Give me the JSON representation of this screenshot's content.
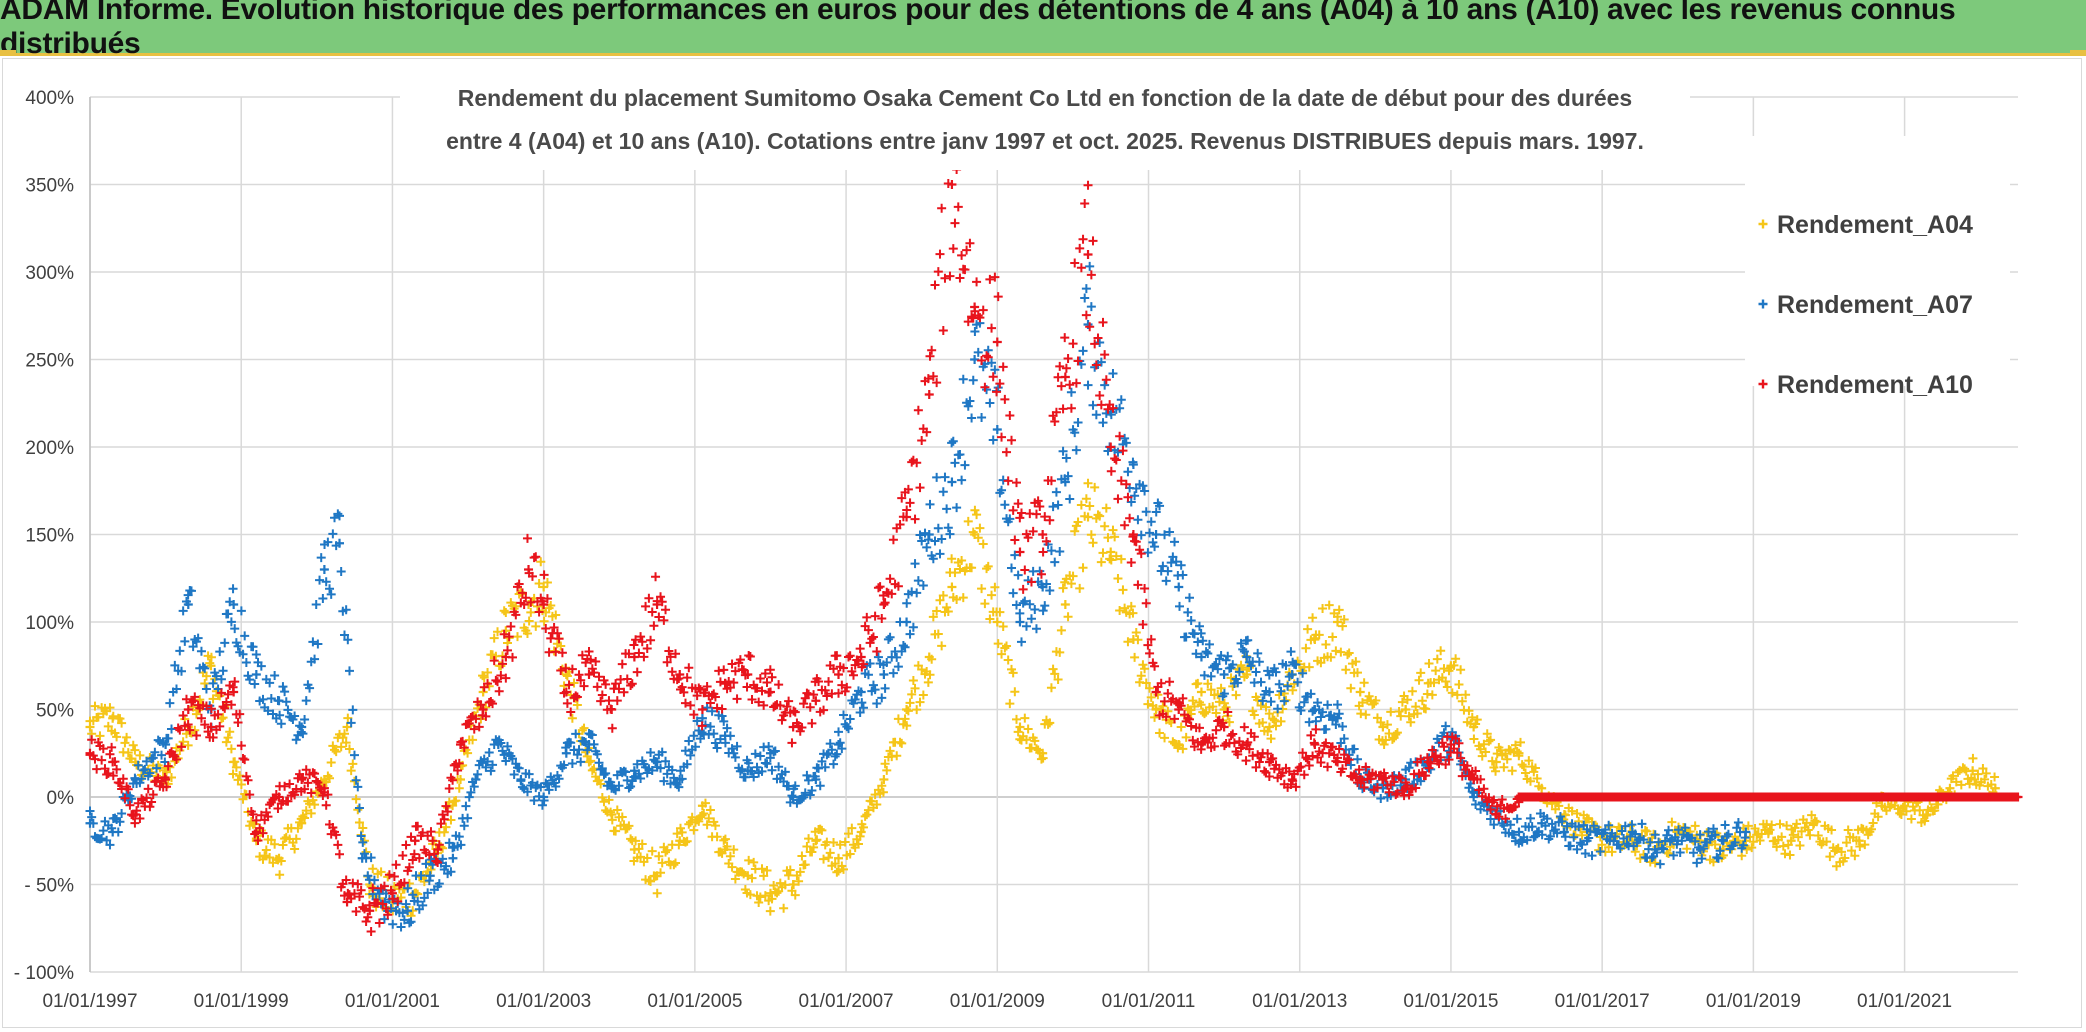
{
  "header": {
    "title": "ADAM Informe. Evolution historique des performances en euros pour des détentions de 4 ans (A04) à 10 ans (A10) avec les revenus connus distribués"
  },
  "colors": {
    "banner": "#7dc97b",
    "A04": "#f5c518",
    "A07": "#1f77c4",
    "A10": "#e8141c",
    "grid": "#d9d9d9"
  },
  "chart_data": {
    "type": "scatter",
    "title_line1": "Rendement du placement Sumitomo Osaka Cement Co Ltd en fonction de la date de début pour des durées",
    "title_line2": "entre 4 (A04) et 10 ans (A10). Cotations entre janv 1997 et oct. 2025. Revenus DISTRIBUES depuis mars. 1997.",
    "xlabel": "",
    "ylabel": "",
    "xlim": [
      1997.0,
      2022.5
    ],
    "ylim": [
      -100,
      400
    ],
    "y_ticks": [
      -100,
      -50,
      0,
      50,
      100,
      150,
      200,
      250,
      300,
      350,
      400
    ],
    "y_tick_labels": [
      "- 100%",
      "- 50%",
      "0%",
      "50%",
      "100%",
      "150%",
      "200%",
      "250%",
      "300%",
      "350%",
      "400%"
    ],
    "x_ticks": [
      1997,
      1999,
      2001,
      2003,
      2005,
      2007,
      2009,
      2011,
      2013,
      2015,
      2017,
      2019,
      2021
    ],
    "x_tick_labels": [
      "01/01/1997",
      "01/01/1999",
      "01/01/2001",
      "01/01/2003",
      "01/01/2005",
      "01/01/2007",
      "01/01/2009",
      "01/01/2011",
      "01/01/2013",
      "01/01/2015",
      "01/01/2017",
      "01/01/2019",
      "01/01/2021"
    ],
    "marker": "+",
    "legend_position": "top-right",
    "series": [
      {
        "name": "Rendement_A04",
        "color": "#f5c518",
        "x": [
          1997.0,
          1997.3,
          1997.6,
          1998.0,
          1998.3,
          1998.6,
          1998.9,
          1999.2,
          1999.5,
          1999.8,
          2000.1,
          2000.4,
          2000.7,
          2001.0,
          2001.3,
          2001.6,
          2001.9,
          2002.2,
          2002.5,
          2002.8,
          2003.0,
          2003.3,
          2003.6,
          2003.9,
          2004.2,
          2004.5,
          2004.8,
          2005.1,
          2005.4,
          2005.7,
          2006.0,
          2006.3,
          2006.6,
          2006.9,
          2007.2,
          2007.5,
          2007.8,
          2008.1,
          2008.4,
          2008.7,
          2009.0,
          2009.3,
          2009.6,
          2009.9,
          2010.2,
          2010.5,
          2010.8,
          2011.1,
          2011.4,
          2011.7,
          2012.0,
          2012.3,
          2012.6,
          2012.9,
          2013.2,
          2013.5,
          2013.8,
          2014.1,
          2014.4,
          2014.7,
          2015.0,
          2015.3,
          2015.6,
          2015.9,
          2016.2,
          2016.5,
          2016.8,
          2017.1,
          2017.4,
          2017.7,
          2018.0,
          2018.3,
          2018.6,
          2018.9,
          2019.2,
          2019.5,
          2019.8,
          2020.1,
          2020.4,
          2020.7,
          2021.0,
          2021.3,
          2021.6,
          2021.9,
          2022.2
        ],
        "values": [
          40,
          45,
          20,
          10,
          40,
          75,
          20,
          -25,
          -35,
          -15,
          10,
          40,
          -50,
          -60,
          -55,
          -30,
          10,
          60,
          95,
          110,
          120,
          70,
          20,
          -10,
          -30,
          -45,
          -25,
          -5,
          -30,
          -45,
          -55,
          -50,
          -25,
          -35,
          -20,
          10,
          50,
          80,
          120,
          150,
          100,
          40,
          25,
          110,
          160,
          140,
          90,
          50,
          30,
          60,
          50,
          70,
          40,
          70,
          90,
          100,
          60,
          40,
          50,
          65,
          75,
          40,
          20,
          25,
          5,
          -10,
          -20,
          -25,
          -25,
          -30,
          -20,
          -25,
          -30,
          -25,
          -20,
          -25,
          -15,
          -30,
          -25,
          -5,
          -5,
          -10,
          5,
          15,
          5
        ]
      },
      {
        "name": "Rendement_A07",
        "color": "#1f77c4",
        "x": [
          1997.0,
          1997.3,
          1997.6,
          1998.0,
          1998.3,
          1998.6,
          1998.9,
          1999.2,
          1999.5,
          1999.8,
          2000.1,
          2000.3,
          2000.6,
          2000.9,
          2001.2,
          2001.5,
          2001.8,
          2002.1,
          2002.4,
          2002.7,
          2003.0,
          2003.3,
          2003.6,
          2003.9,
          2004.2,
          2004.5,
          2004.8,
          2005.1,
          2005.4,
          2005.7,
          2006.0,
          2006.3,
          2006.6,
          2006.9,
          2007.2,
          2007.5,
          2007.8,
          2008.1,
          2008.4,
          2008.7,
          2009.0,
          2009.3,
          2009.6,
          2009.9,
          2010.2,
          2010.5,
          2010.8,
          2011.1,
          2011.4,
          2011.7,
          2012.0,
          2012.3,
          2012.6,
          2012.9,
          2013.2,
          2013.5,
          2013.8,
          2014.1,
          2014.4,
          2014.7,
          2015.0,
          2015.3,
          2015.6,
          2015.9,
          2016.2,
          2016.5,
          2016.8,
          2017.1,
          2017.4,
          2017.7,
          2018.0,
          2018.3,
          2018.6,
          2018.9
        ],
        "values": [
          -15,
          -20,
          10,
          30,
          110,
          50,
          110,
          70,
          55,
          40,
          130,
          145,
          -35,
          -60,
          -65,
          -45,
          -35,
          10,
          30,
          10,
          0,
          25,
          30,
          5,
          15,
          20,
          10,
          45,
          35,
          15,
          25,
          0,
          10,
          30,
          60,
          70,
          100,
          150,
          180,
          250,
          210,
          100,
          120,
          180,
          270,
          220,
          190,
          150,
          120,
          80,
          70,
          80,
          60,
          70,
          50,
          45,
          10,
          5,
          10,
          20,
          35,
          0,
          -10,
          -20,
          -15,
          -20,
          -25,
          -25,
          -20,
          -30,
          -25,
          -30,
          -25,
          -20
        ]
      },
      {
        "name": "Rendement_A10",
        "color": "#e8141c",
        "x": [
          1997.0,
          1997.3,
          1997.6,
          1998.0,
          1998.3,
          1998.6,
          1998.9,
          1999.2,
          1999.5,
          1999.8,
          2000.1,
          2000.4,
          2000.7,
          2001.0,
          2001.3,
          2001.6,
          2001.9,
          2002.2,
          2002.5,
          2002.8,
          2003.0,
          2003.3,
          2003.6,
          2003.9,
          2004.2,
          2004.5,
          2004.8,
          2005.1,
          2005.4,
          2005.7,
          2006.0,
          2006.3,
          2006.6,
          2006.9,
          2007.2,
          2007.5,
          2007.8,
          2008.1,
          2008.4,
          2008.7,
          2009.0,
          2009.3,
          2009.6,
          2009.9,
          2010.2,
          2010.5,
          2010.8,
          2011.1,
          2011.4,
          2011.7,
          2012.0,
          2012.3,
          2012.6,
          2012.9,
          2013.2,
          2013.5,
          2013.8,
          2014.1,
          2014.4,
          2014.7,
          2015.0,
          2015.3,
          2015.6,
          2015.9
        ],
        "values": [
          25,
          20,
          -10,
          10,
          50,
          40,
          60,
          -20,
          0,
          10,
          5,
          -60,
          -65,
          -55,
          -25,
          -30,
          30,
          50,
          80,
          130,
          110,
          60,
          70,
          50,
          80,
          110,
          70,
          50,
          65,
          70,
          60,
          40,
          55,
          70,
          80,
          110,
          160,
          230,
          350,
          280,
          260,
          140,
          150,
          240,
          310,
          200,
          150,
          60,
          50,
          30,
          40,
          30,
          20,
          10,
          30,
          20,
          10,
          10,
          5,
          20,
          30,
          10,
          -10,
          0
        ]
      },
      {
        "name": "Rendement_A10_flat",
        "legend": false,
        "color": "#e8141c",
        "x": [
          2015.9,
          2016.5,
          2017.0,
          2017.5,
          2018.0,
          2018.5,
          2019.0,
          2019.5,
          2020.0,
          2020.5,
          2021.0,
          2021.5,
          2022.0,
          2022.5
        ],
        "values": [
          0,
          0,
          0,
          0,
          0,
          0,
          0,
          0,
          0,
          0,
          0,
          0,
          0,
          0
        ]
      }
    ],
    "legend": [
      "Rendement_A04",
      "Rendement_A07",
      "Rendement_A10"
    ]
  }
}
